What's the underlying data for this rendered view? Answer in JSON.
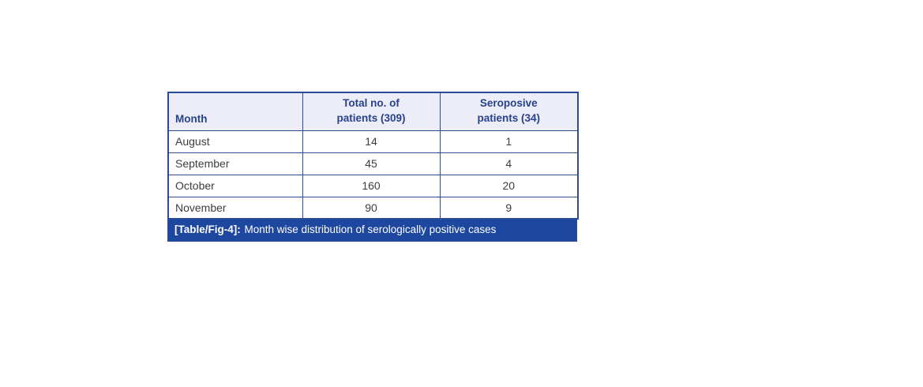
{
  "table": {
    "columns": [
      {
        "label": "Month"
      },
      {
        "label": "Total no. of\npatients (309)"
      },
      {
        "label": "Seroposive\npatients (34)"
      }
    ],
    "rows": [
      {
        "month": "August",
        "total": "14",
        "seropositive": "1"
      },
      {
        "month": "September",
        "total": "45",
        "seropositive": "4"
      },
      {
        "month": "October",
        "total": "160",
        "seropositive": "20"
      },
      {
        "month": "November",
        "total": "90",
        "seropositive": "9"
      }
    ],
    "caption": {
      "tag": "[Table/Fig-4]:",
      "text": "Month wise distribution of serologically positive cases"
    }
  },
  "chart_data": {
    "type": "table",
    "title": "[Table/Fig-4]: Month wise distribution of serologically positive cases",
    "categories": [
      "August",
      "September",
      "October",
      "November"
    ],
    "series": [
      {
        "name": "Total no. of patients (309)",
        "values": [
          14,
          45,
          160,
          90
        ]
      },
      {
        "name": "Seroposive patients (34)",
        "values": [
          1,
          4,
          20,
          9
        ]
      }
    ]
  },
  "colors": {
    "border": "#2b4a97",
    "header_bg": "#ecedf6",
    "header_text": "#27418f",
    "caption_bg": "#1e479f",
    "caption_text": "#ffffff",
    "body_text": "#3d3d3d",
    "page_bg": "#ffffff"
  }
}
